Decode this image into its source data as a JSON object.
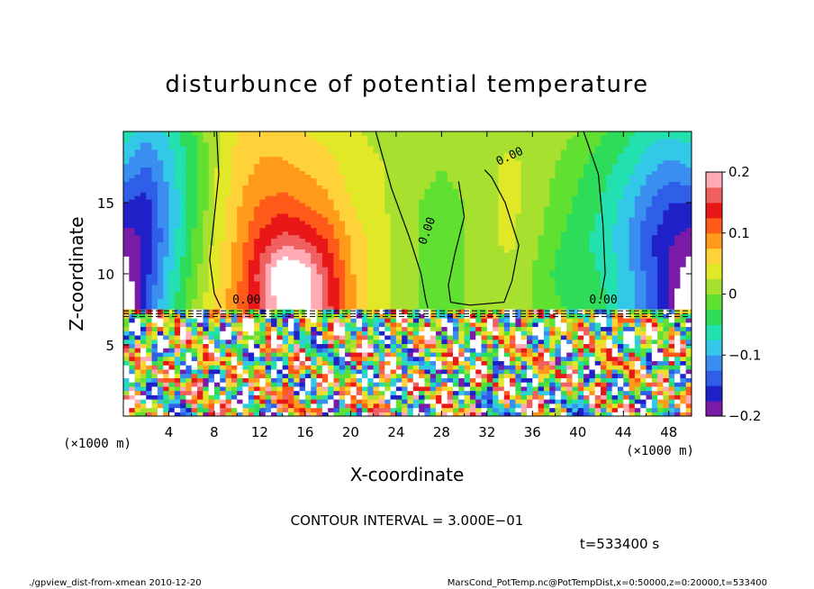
{
  "chart_data": {
    "type": "heatmap",
    "title": "disturbunce of potential temperature",
    "xlabel": "X-coordinate",
    "ylabel": "Z-coordinate",
    "x_unit": "(×1000 m)",
    "y_unit": "(×1000 m)",
    "xlim": [
      0,
      50
    ],
    "ylim": [
      0,
      20
    ],
    "x_ticks": [
      4,
      8,
      12,
      16,
      20,
      24,
      28,
      32,
      36,
      40,
      44,
      48
    ],
    "y_ticks": [
      5,
      10,
      15
    ],
    "colorbar": {
      "range": [
        -0.2,
        0.2
      ],
      "ticks": [
        {
          "value": 0.2,
          "label": "0.2"
        },
        {
          "value": 0.1,
          "label": "0.1"
        },
        {
          "value": 0,
          "label": "0"
        },
        {
          "value": -0.1,
          "label": "−0.1"
        },
        {
          "value": -0.2,
          "label": "−0.2"
        }
      ],
      "colors": [
        "#7a1ba8",
        "#2020c8",
        "#2f5ee8",
        "#3a8ef0",
        "#33c8e8",
        "#22e0b0",
        "#2edc5a",
        "#60e030",
        "#a8e030",
        "#e0e828",
        "#ffd23a",
        "#ff9a1a",
        "#ff5a1a",
        "#e81818",
        "#f06060",
        "#ffaab4"
      ]
    },
    "field_upper": {
      "x": [
        0,
        2,
        4,
        6,
        8,
        10,
        12,
        14,
        16,
        18,
        20,
        22,
        24,
        26,
        28,
        30,
        32,
        34,
        36,
        38,
        40,
        42,
        44,
        46,
        48,
        50
      ],
      "z": [
        7.5,
        10,
        12.5,
        15,
        17.5,
        20
      ],
      "values": [
        [
          -0.25,
          -0.14,
          -0.07,
          0.0,
          0.05,
          0.1,
          0.15,
          0.22,
          0.22,
          0.16,
          0.09,
          0.04,
          0.02,
          0.0,
          -0.01,
          0.0,
          0.01,
          0.02,
          0.0,
          -0.02,
          -0.03,
          -0.04,
          -0.08,
          -0.12,
          -0.18,
          -0.25
        ],
        [
          -0.22,
          -0.16,
          -0.08,
          -0.02,
          0.04,
          0.09,
          0.16,
          0.24,
          0.22,
          0.15,
          0.08,
          0.04,
          0.02,
          0.0,
          -0.01,
          0.0,
          0.02,
          0.02,
          0.0,
          -0.03,
          -0.04,
          -0.05,
          -0.08,
          -0.13,
          -0.18,
          -0.22
        ],
        [
          -0.19,
          -0.17,
          -0.1,
          -0.03,
          0.03,
          0.08,
          0.13,
          0.16,
          0.15,
          0.12,
          0.07,
          0.04,
          0.02,
          0.0,
          -0.01,
          0.0,
          0.02,
          0.03,
          0.01,
          -0.02,
          -0.04,
          -0.06,
          -0.09,
          -0.14,
          -0.17,
          -0.19
        ],
        [
          -0.15,
          -0.16,
          -0.1,
          -0.04,
          0.02,
          0.07,
          0.1,
          0.11,
          0.1,
          0.08,
          0.05,
          0.03,
          0.02,
          0.0,
          -0.01,
          0.0,
          0.02,
          0.03,
          0.02,
          -0.01,
          -0.03,
          -0.05,
          -0.08,
          -0.12,
          -0.15,
          -0.15
        ],
        [
          -0.1,
          -0.13,
          -0.09,
          -0.04,
          0.02,
          0.06,
          0.08,
          0.08,
          0.07,
          0.06,
          0.04,
          0.03,
          0.02,
          0.01,
          0.0,
          0.01,
          0.02,
          0.03,
          0.02,
          0.0,
          -0.02,
          -0.04,
          -0.06,
          -0.09,
          -0.11,
          -0.1
        ],
        [
          -0.06,
          -0.09,
          -0.07,
          -0.03,
          0.02,
          0.05,
          0.06,
          0.06,
          0.05,
          0.04,
          0.03,
          0.02,
          0.02,
          0.01,
          0.0,
          0.01,
          0.02,
          0.02,
          0.02,
          0.01,
          0.0,
          -0.02,
          -0.04,
          -0.06,
          -0.07,
          -0.06
        ]
      ]
    },
    "zero_contour_label": "0.00",
    "contour_interval_text": "CONTOUR INTERVAL = 3.000E−01",
    "time_text": "t=533400 s",
    "footer_left": "./gpview_dist-from-xmean  2010-12-20",
    "footer_right": "MarsCond_PotTemp.nc@PotTempDist,x=0:50000,z=0:20000,t=533400"
  }
}
